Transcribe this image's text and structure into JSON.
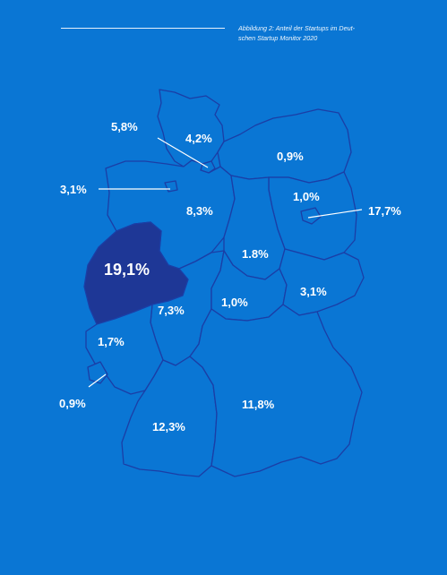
{
  "caption": {
    "line1": "Abbildung 2: Anteil der Startups im Deut-",
    "line2": "schen Startup Monitor 2020"
  },
  "map": {
    "highlight_color": "#1e3796",
    "background_color": "#0a76d4",
    "regions": [
      {
        "id": "schleswig-holstein",
        "value": "4,2%"
      },
      {
        "id": "hamburg",
        "value": "5,8%"
      },
      {
        "id": "bremen",
        "value": "3,1%"
      },
      {
        "id": "mecklenburg-vorpommern",
        "value": "0,9%"
      },
      {
        "id": "brandenburg",
        "value": "1,0%"
      },
      {
        "id": "berlin",
        "value": "17,7%"
      },
      {
        "id": "niedersachsen",
        "value": "8,3%"
      },
      {
        "id": "sachsen-anhalt",
        "value": "1.8%"
      },
      {
        "id": "nordrhein-westfalen",
        "value": "19,1%"
      },
      {
        "id": "sachsen",
        "value": "3,1%"
      },
      {
        "id": "thueringen",
        "value": "1,0%"
      },
      {
        "id": "hessen",
        "value": "7,3%"
      },
      {
        "id": "rheinland-pfalz",
        "value": "1,7%"
      },
      {
        "id": "saarland",
        "value": "0,9%"
      },
      {
        "id": "bayern",
        "value": "11,8%"
      },
      {
        "id": "baden-wuerttemberg",
        "value": "12,3%"
      }
    ]
  }
}
